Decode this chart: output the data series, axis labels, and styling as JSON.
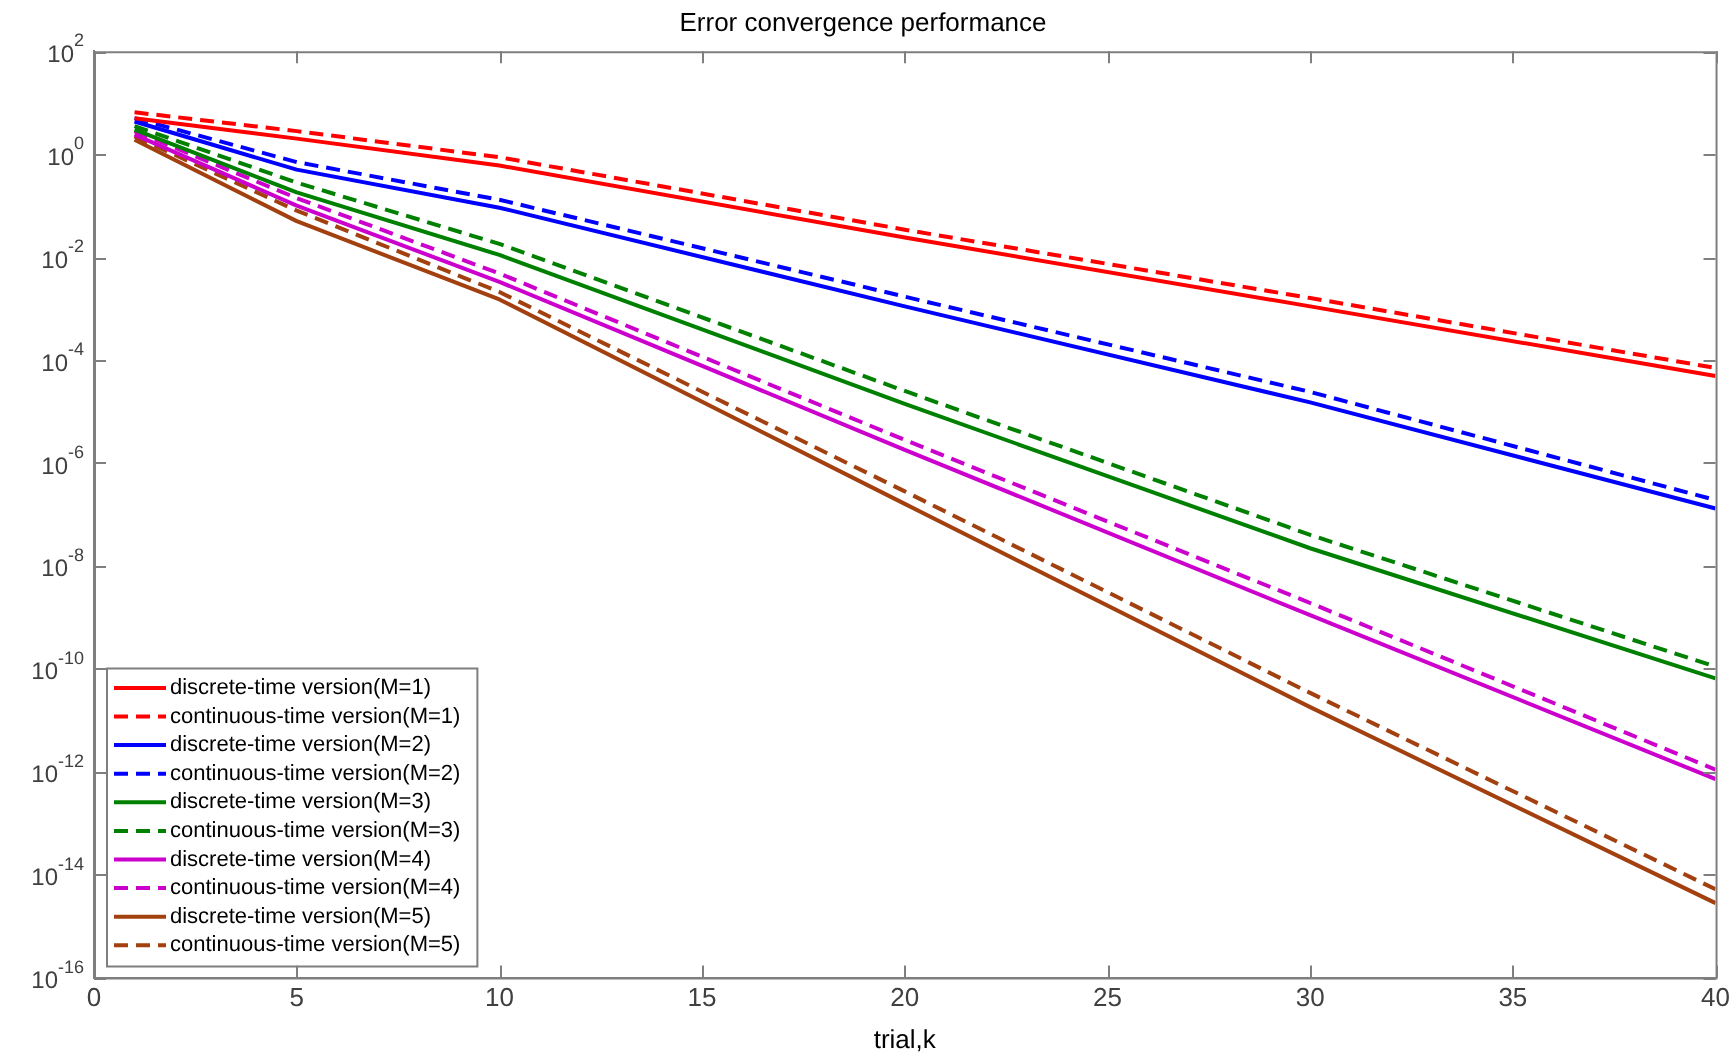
{
  "chart_data": {
    "type": "line",
    "title": "Error convergence performance",
    "xlabel": "trial,k",
    "x": [
      1,
      5,
      10,
      20,
      30,
      40
    ],
    "series": [
      {
        "name": "discrete-time version(M=1)",
        "color": "#ff0000",
        "line_style": "solid",
        "values": [
          5,
          2,
          0.6,
          0.024,
          0.0011,
          4.9e-05
        ]
      },
      {
        "name": "continuous-time version(M=1)",
        "color": "#ff0000",
        "line_style": "dashed",
        "values": [
          6.5,
          2.8,
          0.87,
          0.034,
          0.0016,
          7e-05
        ]
      },
      {
        "name": "discrete-time version(M=2)",
        "color": "#0000ff",
        "line_style": "solid",
        "values": [
          4.3,
          0.5,
          0.091,
          0.0011,
          1.5e-05,
          1.3e-07
        ]
      },
      {
        "name": "continuous-time version(M=2)",
        "color": "#0000ff",
        "line_style": "dashed",
        "values": [
          5,
          0.7,
          0.13,
          0.0017,
          2.4e-05,
          1.9e-07
        ]
      },
      {
        "name": "discrete-time version(M=3)",
        "color": "#008000",
        "line_style": "solid",
        "values": [
          3,
          0.18,
          0.011,
          1.4e-05,
          2.2e-08,
          6.5e-11
        ]
      },
      {
        "name": "continuous-time version(M=3)",
        "color": "#008000",
        "line_style": "dashed",
        "values": [
          3.5,
          0.28,
          0.018,
          2.5e-05,
          4e-08,
          1.1e-10
        ]
      },
      {
        "name": "discrete-time version(M=4)",
        "color": "#cc00cc",
        "line_style": "solid",
        "values": [
          2.4,
          0.1,
          0.0033,
          1.8e-06,
          1.1e-09,
          7.2e-13
        ]
      },
      {
        "name": "continuous-time version(M=4)",
        "color": "#cc00cc",
        "line_style": "dashed",
        "values": [
          2.8,
          0.14,
          0.0048,
          2.8e-06,
          1.9e-09,
          1.1e-12
        ]
      },
      {
        "name": "discrete-time version(M=5)",
        "color": "#a2400f",
        "line_style": "solid",
        "values": [
          1.9,
          0.05,
          0.0015,
          1.6e-07,
          1.8e-11,
          2.8e-15
        ]
      },
      {
        "name": "continuous-time version(M=5)",
        "color": "#a2400f",
        "line_style": "dashed",
        "values": [
          2.2,
          0.08,
          0.0021,
          2.8e-07,
          3.4e-11,
          5.2e-15
        ]
      }
    ],
    "xlim": [
      0,
      40
    ],
    "xticks": [
      0,
      5,
      10,
      15,
      20,
      25,
      30,
      35,
      40
    ],
    "ylim": [
      1e-16,
      100
    ],
    "log": "y",
    "yticks": [
      {
        "value": 1e-16,
        "label": "10$^{-16}$"
      },
      {
        "value": 1e-14,
        "label": "10$^{-14}$"
      },
      {
        "value": 1e-12,
        "label": "10$^{-12}$"
      },
      {
        "value": 1e-10,
        "label": "10$^{-10}$"
      },
      {
        "value": 1e-08,
        "label": "10$^{-8}$"
      },
      {
        "value": 1e-06,
        "label": "10$^{-6}$"
      },
      {
        "value": 0.0001,
        "label": "10$^{-4}$"
      },
      {
        "value": 0.01,
        "label": "10$^{-2}$"
      },
      {
        "value": 1,
        "label": "10$^{0}$"
      },
      {
        "value": 100,
        "label": "10$^{2}$"
      }
    ],
    "grid": false,
    "legend": "bottom left",
    "marker": "none"
  }
}
